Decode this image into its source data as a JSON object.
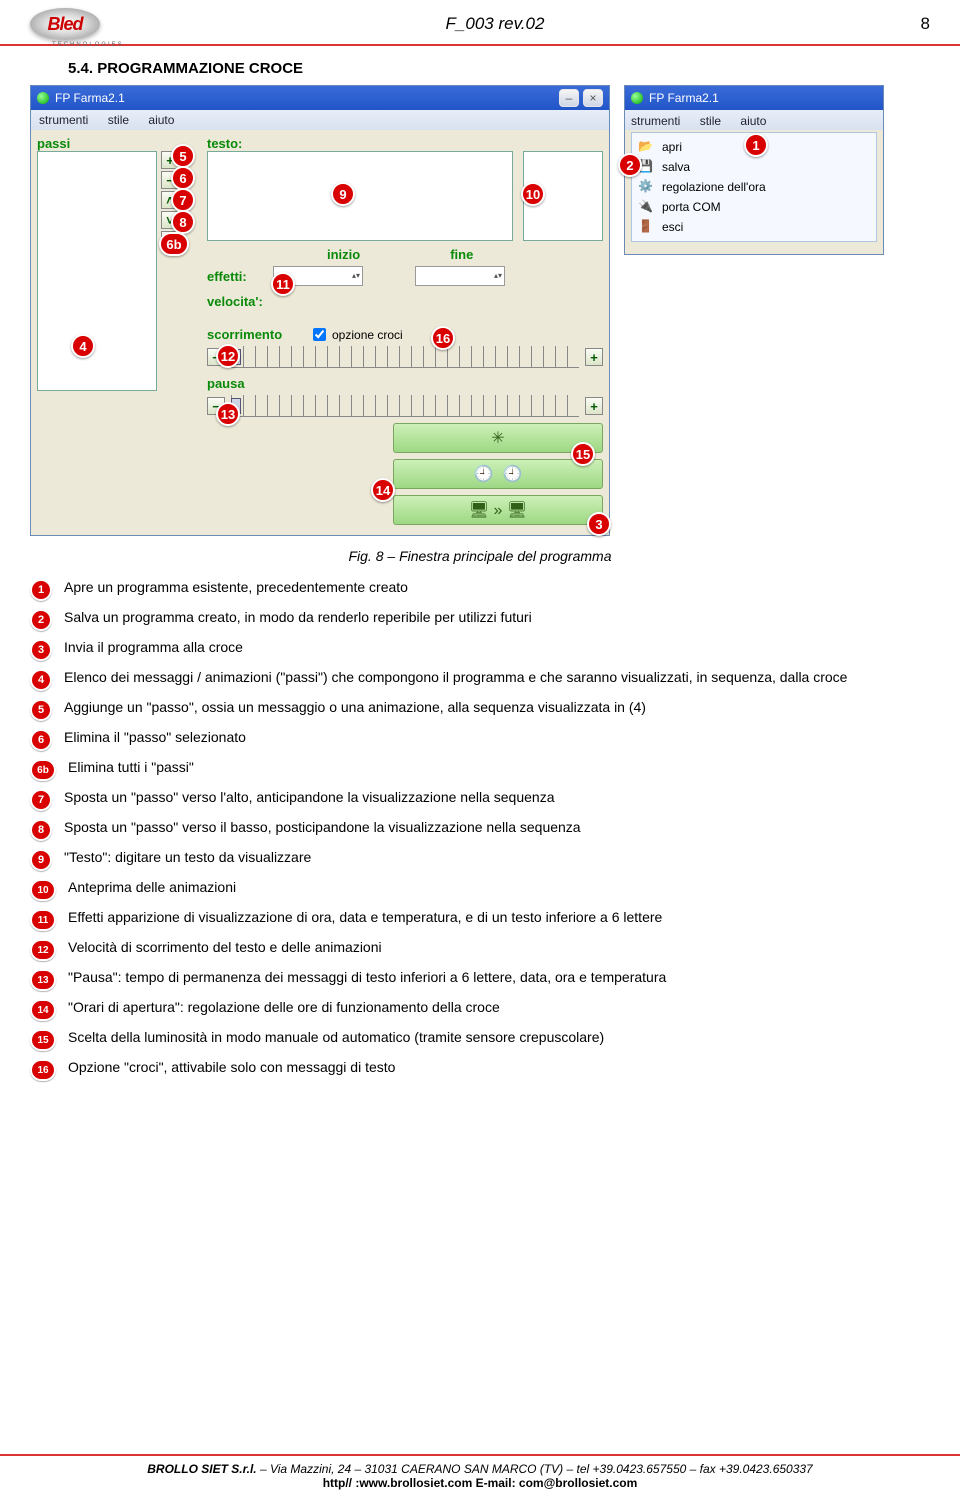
{
  "doc": {
    "code": "F_003 rev.02",
    "page": "8",
    "logo_text": "Bled",
    "logo_sub": "TECHNOLOGIES"
  },
  "section": {
    "num": "5.4.",
    "title": "PROGRAMMAZIONE CROCE"
  },
  "main_window": {
    "title": "FP Farma2.1",
    "menu": {
      "a": "strumenti",
      "b": "stile",
      "c": "aiuto"
    },
    "labels": {
      "passi": "passi",
      "testo": "testo:",
      "inizio": "inizio",
      "fine": "fine",
      "effetti": "effetti:",
      "velocita": "velocita':",
      "scorrimento": "scorrimento",
      "pausa": "pausa",
      "opzione": "opzione croci"
    },
    "buttons": {
      "plus": "+",
      "minus": "−",
      "up": "˄",
      "down": "˅",
      "x": "X"
    },
    "big_buttons": {
      "star": "✳",
      "clock1": "🕘",
      "clock2": "🕘",
      "send": "🖥 » 🖥"
    }
  },
  "small_window": {
    "title": "FP Farma2.1",
    "menu": {
      "a": "strumenti",
      "b": "stile",
      "c": "aiuto"
    },
    "items": {
      "apri": "apri",
      "salva": "salva",
      "regola": "regolazione dell'ora",
      "porta": "porta COM",
      "esci": "esci"
    }
  },
  "callouts": {
    "c1": "1",
    "c2": "2",
    "c3": "3",
    "c4": "4",
    "c5": "5",
    "c6": "6",
    "c6b": "6b",
    "c7": "7",
    "c8": "8",
    "c9": "9",
    "c10": "10",
    "c11": "11",
    "c12": "12",
    "c13": "13",
    "c14": "14",
    "c15": "15",
    "c16": "16"
  },
  "figure_caption": "Fig. 8 – Finestra principale del programma",
  "descriptions": [
    {
      "n": "1",
      "text": "Apre un programma esistente, precedentemente creato"
    },
    {
      "n": "2",
      "text": "Salva un programma creato, in modo da renderlo reperibile per utilizzi futuri"
    },
    {
      "n": "3",
      "text": "Invia il programma alla croce"
    },
    {
      "n": "4",
      "text": "Elenco dei messaggi / animazioni (\"passi\") che compongono il programma e che saranno visualizzati, in sequenza, dalla croce"
    },
    {
      "n": "5",
      "text": "Aggiunge un \"passo\", ossia un messaggio o una animazione, alla sequenza visualizzata in (4)"
    },
    {
      "n": "6",
      "text": "Elimina il \"passo\" selezionato"
    },
    {
      "n": "6b",
      "text": "Elimina tutti i \"passi\""
    },
    {
      "n": "7",
      "text": "Sposta un \"passo\" verso l'alto, anticipandone la visualizzazione nella sequenza"
    },
    {
      "n": "8",
      "text": "Sposta un \"passo\" verso il basso, posticipandone la visualizzazione nella sequenza"
    },
    {
      "n": "9",
      "text": "\"Testo\": digitare un testo da visualizzare"
    },
    {
      "n": "10",
      "text": "Anteprima delle animazioni"
    },
    {
      "n": "11",
      "text": "Effetti apparizione di visualizzazione di ora, data e temperatura, e di un testo inferiore a 6 lettere"
    },
    {
      "n": "12",
      "text": "Velocità di scorrimento del testo e delle animazioni"
    },
    {
      "n": "13",
      "text": "\"Pausa\": tempo di permanenza dei messaggi di testo inferiori a 6 lettere, data, ora e temperatura"
    },
    {
      "n": "14",
      "text": "\"Orari di apertura\": regolazione delle ore di funzionamento della croce"
    },
    {
      "n": "15",
      "text": "Scelta della luminosità in modo manuale od automatico (tramite sensore crepuscolare)"
    },
    {
      "n": "16",
      "text": "Opzione \"croci\", attivabile solo con messaggi di testo"
    }
  ],
  "footer": {
    "company": "BROLLO SIET S.r.l.",
    "addr": " – Via Mazzini, 24 – 31031 CAERANO SAN MARCO (TV) – tel +39.0423.657550 – fax +39.0423.650337",
    "web": "http// :www.brollosiet.com  E-mail: com@brollosiet.com"
  }
}
